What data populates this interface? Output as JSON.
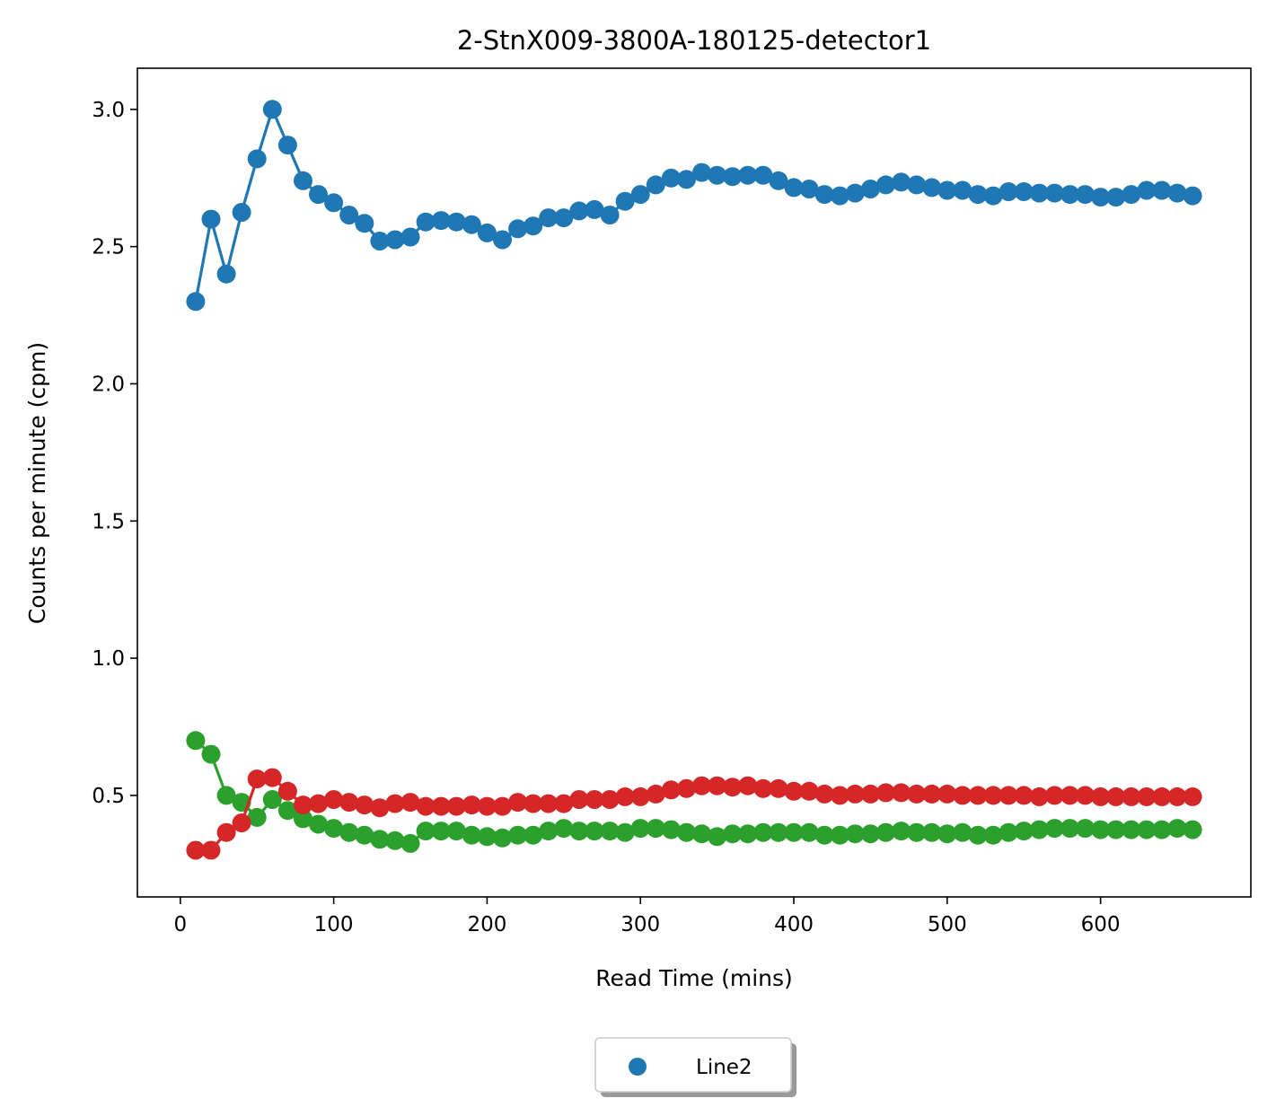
{
  "chart_data": {
    "type": "line",
    "title": "2-StnX009-3800A-180125-detector1",
    "xlabel": "Read Time (mins)",
    "ylabel": "Counts per minute (cpm)",
    "xlim": [
      -28,
      698
    ],
    "ylim": [
      0.13,
      3.15
    ],
    "xticks": [
      0,
      100,
      200,
      300,
      400,
      500,
      600
    ],
    "xtick_labels": [
      "0",
      "100",
      "200",
      "300",
      "400",
      "500",
      "600"
    ],
    "yticks": [
      0.5,
      1.0,
      1.5,
      2.0,
      2.5,
      3.0
    ],
    "ytick_labels": [
      "0.5",
      "1.0",
      "1.5",
      "2.0",
      "2.5",
      "3.0"
    ],
    "grid": false,
    "legend": {
      "placement": "bottom-center below axes",
      "entries": [
        "Line2"
      ],
      "entry_colors": [
        "#1f77b4"
      ]
    },
    "x": [
      10,
      20,
      30,
      40,
      50,
      60,
      70,
      80,
      90,
      100,
      110,
      120,
      130,
      140,
      150,
      160,
      170,
      180,
      190,
      200,
      210,
      220,
      230,
      240,
      250,
      260,
      270,
      280,
      290,
      300,
      310,
      320,
      330,
      340,
      350,
      360,
      370,
      380,
      390,
      400,
      410,
      420,
      430,
      440,
      450,
      460,
      470,
      480,
      490,
      500,
      510,
      520,
      530,
      540,
      550,
      560,
      570,
      580,
      590,
      600,
      610,
      620,
      630,
      640,
      650,
      660
    ],
    "series": [
      {
        "color": "#1f77b4",
        "values": [
          2.3,
          2.6,
          2.4,
          2.625,
          2.82,
          3.0,
          2.87,
          2.74,
          2.69,
          2.66,
          2.615,
          2.585,
          2.52,
          2.525,
          2.535,
          2.59,
          2.595,
          2.59,
          2.58,
          2.55,
          2.525,
          2.565,
          2.575,
          2.605,
          2.605,
          2.63,
          2.635,
          2.615,
          2.665,
          2.69,
          2.725,
          2.75,
          2.745,
          2.77,
          2.76,
          2.755,
          2.76,
          2.76,
          2.74,
          2.715,
          2.71,
          2.69,
          2.685,
          2.695,
          2.71,
          2.725,
          2.735,
          2.725,
          2.715,
          2.705,
          2.705,
          2.69,
          2.685,
          2.7,
          2.7,
          2.695,
          2.695,
          2.69,
          2.69,
          2.68,
          2.68,
          2.69,
          2.705,
          2.705,
          2.695,
          2.685
        ]
      },
      {
        "color": "#2ca02c",
        "values": [
          0.7,
          0.65,
          0.5,
          0.475,
          0.42,
          0.485,
          0.445,
          0.415,
          0.395,
          0.38,
          0.365,
          0.355,
          0.34,
          0.335,
          0.325,
          0.37,
          0.37,
          0.37,
          0.355,
          0.35,
          0.345,
          0.355,
          0.355,
          0.37,
          0.38,
          0.37,
          0.37,
          0.37,
          0.365,
          0.38,
          0.38,
          0.375,
          0.365,
          0.36,
          0.35,
          0.36,
          0.36,
          0.365,
          0.365,
          0.365,
          0.365,
          0.355,
          0.355,
          0.36,
          0.36,
          0.365,
          0.37,
          0.365,
          0.365,
          0.36,
          0.365,
          0.355,
          0.355,
          0.365,
          0.37,
          0.375,
          0.38,
          0.38,
          0.38,
          0.375,
          0.375,
          0.375,
          0.375,
          0.375,
          0.38,
          0.375
        ]
      },
      {
        "color": "#d62728",
        "values": [
          0.3,
          0.3,
          0.365,
          0.4,
          0.56,
          0.565,
          0.515,
          0.465,
          0.47,
          0.485,
          0.475,
          0.465,
          0.455,
          0.47,
          0.475,
          0.46,
          0.46,
          0.46,
          0.465,
          0.46,
          0.46,
          0.475,
          0.47,
          0.47,
          0.47,
          0.485,
          0.485,
          0.485,
          0.495,
          0.495,
          0.505,
          0.52,
          0.525,
          0.535,
          0.535,
          0.53,
          0.535,
          0.525,
          0.525,
          0.515,
          0.515,
          0.505,
          0.5,
          0.505,
          0.505,
          0.51,
          0.51,
          0.505,
          0.505,
          0.505,
          0.5,
          0.5,
          0.5,
          0.5,
          0.5,
          0.495,
          0.5,
          0.5,
          0.5,
          0.495,
          0.495,
          0.495,
          0.495,
          0.495,
          0.495,
          0.495
        ]
      }
    ]
  }
}
